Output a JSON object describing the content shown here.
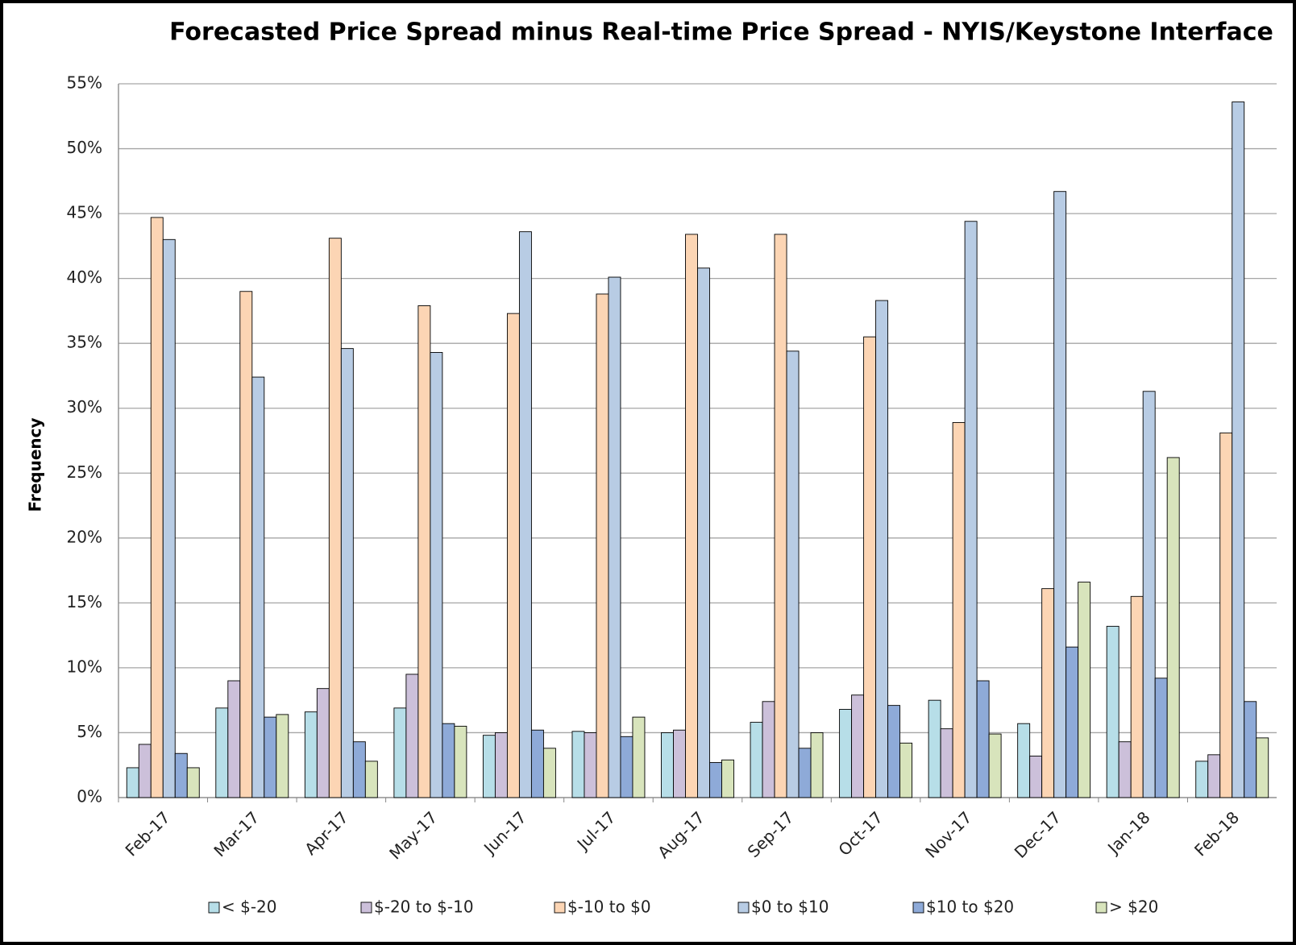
{
  "chart_data": {
    "type": "bar",
    "title": "Forecasted Price Spread minus Real-time Price Spread - NYIS/Keystone Interface",
    "y_label": "Frequency",
    "categories": [
      "Feb-17",
      "Mar-17",
      "Apr-17",
      "May-17",
      "Jun-17",
      "Jul-17",
      "Aug-17",
      "Sep-17",
      "Oct-17",
      "Nov-17",
      "Dec-17",
      "Jan-18",
      "Feb-18"
    ],
    "series": [
      {
        "name": "< $-20",
        "color": "#b7dee8",
        "values": [
          2.3,
          6.9,
          6.6,
          6.9,
          4.8,
          5.1,
          5.0,
          5.8,
          6.8,
          7.5,
          5.7,
          13.2,
          2.8
        ]
      },
      {
        "name": "$-20 to $-10",
        "color": "#ccc0da",
        "values": [
          4.1,
          9.0,
          8.4,
          9.5,
          5.0,
          5.0,
          5.2,
          7.4,
          7.9,
          5.3,
          3.2,
          4.3,
          3.3
        ]
      },
      {
        "name": "$-10 to $0",
        "color": "#fcd5b4",
        "values": [
          44.7,
          39.0,
          43.1,
          37.9,
          37.3,
          38.8,
          43.4,
          43.4,
          35.5,
          28.9,
          16.1,
          15.5,
          28.1
        ]
      },
      {
        "name": "$0 to $10",
        "color": "#b8cce4",
        "values": [
          43.0,
          32.4,
          34.6,
          34.3,
          43.6,
          40.1,
          40.8,
          34.4,
          38.3,
          44.4,
          46.7,
          31.3,
          53.6
        ]
      },
      {
        "name": "$10 to $20",
        "color": "#8eaad8",
        "values": [
          3.4,
          6.2,
          4.3,
          5.7,
          5.2,
          4.7,
          2.7,
          3.8,
          7.1,
          9.0,
          11.6,
          9.2,
          7.4
        ]
      },
      {
        "name": "> $20",
        "color": "#d8e4bc",
        "values": [
          2.3,
          6.4,
          2.8,
          5.5,
          3.8,
          6.2,
          2.9,
          5.0,
          4.2,
          4.9,
          16.6,
          26.2,
          4.6
        ]
      }
    ],
    "ylim": [
      0,
      55
    ],
    "yticks": [
      {
        "value": 0,
        "label": "0%"
      },
      {
        "value": 5,
        "label": "5%"
      },
      {
        "value": 10,
        "label": "10%"
      },
      {
        "value": 15,
        "label": "15%"
      },
      {
        "value": 20,
        "label": "20%"
      },
      {
        "value": 25,
        "label": "25%"
      },
      {
        "value": 30,
        "label": "30%"
      },
      {
        "value": 35,
        "label": "35%"
      },
      {
        "value": 40,
        "label": "40%"
      },
      {
        "value": 45,
        "label": "45%"
      },
      {
        "value": 50,
        "label": "50%"
      },
      {
        "value": 55,
        "label": "55%"
      }
    ],
    "grid": true,
    "legend": "bottom"
  }
}
